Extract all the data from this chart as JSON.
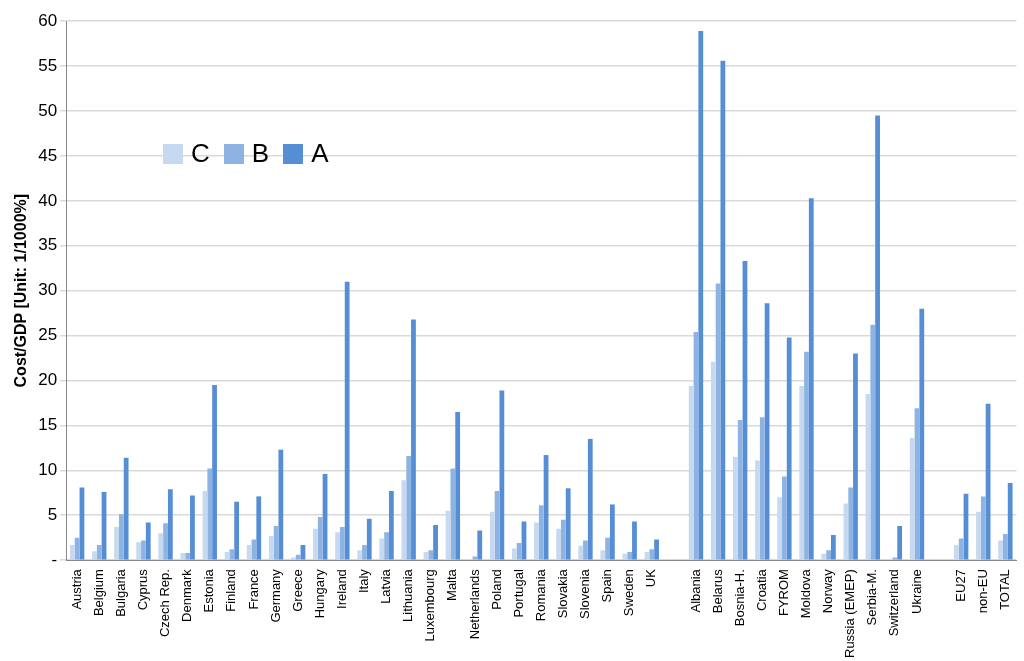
{
  "chart_data": {
    "type": "bar",
    "ylabel": "Cost/GDP [Unit: 1/1000%]",
    "categories": [
      "Austria",
      "Belgium",
      "Bulgaria",
      "Cyprus",
      "Czech Rep.",
      "Denmark",
      "Estonia",
      "Finland",
      "France",
      "Germany",
      "Greece",
      "Hungary",
      "Ireland",
      "Italy",
      "Latvia",
      "Lithuania",
      "Luxembourg",
      "Malta",
      "Netherlands",
      "Poland",
      "Portugal",
      "Romania",
      "Slovakia",
      "Slovenia",
      "Spain",
      "Sweden",
      "UK",
      null,
      "Albania",
      "Belarus",
      "Bosnia-H.",
      "Croatia",
      "FYROM",
      "Moldova",
      "Norway",
      "Russia (EMEP)",
      "Serbia-M.",
      "Switzerland",
      "Ukraine",
      null,
      "EU27",
      "non-EU",
      "TOTAL"
    ],
    "series": [
      {
        "name": "C",
        "color": "#c6d9f1",
        "values": [
          1.7,
          1.0,
          3.7,
          2.0,
          3.0,
          0.8,
          7.7,
          0.9,
          1.7,
          2.7,
          0.3,
          3.5,
          3.1,
          1.1,
          2.4,
          8.9,
          0.9,
          5.5,
          null,
          5.4,
          1.3,
          4.2,
          3.5,
          1.6,
          1.1,
          0.7,
          0.9,
          null,
          19.4,
          22.1,
          11.5,
          11.1,
          7.0,
          19.4,
          0.7,
          6.3,
          18.5,
          null,
          13.6,
          null,
          1.7,
          5.4,
          2.2
        ]
      },
      {
        "name": "B",
        "color": "#8db3e2",
        "values": [
          2.5,
          1.7,
          5.1,
          2.2,
          4.1,
          0.8,
          10.2,
          1.2,
          2.3,
          3.8,
          0.6,
          4.8,
          3.7,
          1.7,
          3.1,
          11.6,
          1.1,
          10.2,
          0.4,
          7.7,
          1.9,
          6.1,
          4.5,
          2.2,
          2.5,
          0.9,
          1.2,
          null,
          25.4,
          30.8,
          15.6,
          15.9,
          9.3,
          23.2,
          1.1,
          8.1,
          26.2,
          0.3,
          16.9,
          null,
          2.4,
          7.1,
          2.9
        ]
      },
      {
        "name": "A",
        "color": "#558ed5",
        "values": [
          8.1,
          7.6,
          11.4,
          4.2,
          7.9,
          7.2,
          19.5,
          6.5,
          7.1,
          12.3,
          1.7,
          9.6,
          31.0,
          4.6,
          7.7,
          26.8,
          3.9,
          16.5,
          3.3,
          18.9,
          4.3,
          11.7,
          8.0,
          13.5,
          6.2,
          4.3,
          2.3,
          null,
          58.9,
          55.6,
          33.3,
          28.6,
          24.8,
          40.3,
          2.8,
          23.0,
          49.5,
          3.8,
          28.0,
          null,
          7.4,
          17.4,
          8.6
        ]
      }
    ],
    "ylim": [
      0,
      60
    ],
    "yticks": [
      {
        "value": 0,
        "label": "-"
      },
      5,
      10,
      15,
      20,
      25,
      30,
      35,
      40,
      45,
      50,
      55,
      60
    ],
    "grid": "y",
    "legend": "top left"
  }
}
